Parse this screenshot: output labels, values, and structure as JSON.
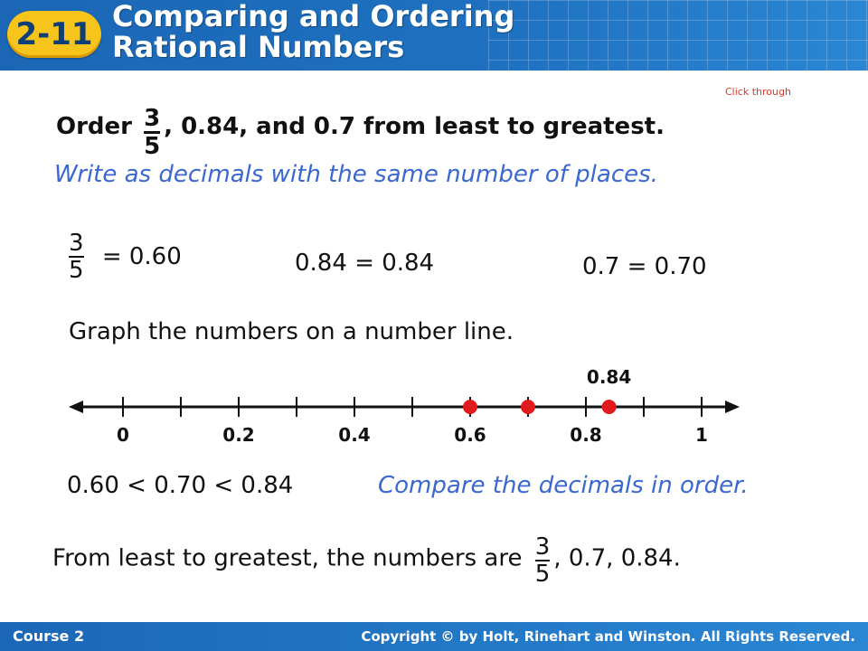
{
  "header": {
    "lesson_number": "2-11",
    "title_line1": "Comparing and Ordering",
    "title_line2": "Rational Numbers"
  },
  "click_through": "Click through",
  "problem": {
    "prefix": "Order",
    "fraction": {
      "numerator": "3",
      "denominator": "5"
    },
    "suffix": ", 0.84, and 0.7 from least to greatest."
  },
  "step1_instruction": "Write as decimals with the same number of places.",
  "conversions": {
    "fraction": {
      "numerator": "3",
      "denominator": "5"
    },
    "fraction_eq": "= 0.60",
    "second": "0.84 = 0.84",
    "third": "0.7 = 0.70"
  },
  "graph_instruction": "Graph the numbers on a number line.",
  "number_line": {
    "min": 0,
    "max": 1,
    "tick_step": 0.1,
    "labels": [
      {
        "value": 0,
        "text": "0"
      },
      {
        "value": 0.2,
        "text": "0.2"
      },
      {
        "value": 0.4,
        "text": "0.4"
      },
      {
        "value": 0.6,
        "text": "0.6"
      },
      {
        "value": 0.8,
        "text": "0.8"
      },
      {
        "value": 1,
        "text": "1"
      }
    ],
    "points": [
      0.6,
      0.7,
      0.84
    ],
    "point_label": "0.84",
    "point_color": "#e11b1b"
  },
  "inequality": "0.60 < 0.70 < 0.84",
  "compare_instruction": "Compare the decimals in order.",
  "final": {
    "prefix": "From least to greatest, the numbers are",
    "fraction": {
      "numerator": "3",
      "denominator": "5"
    },
    "suffix": ", 0.7, 0.84."
  },
  "footer": {
    "course": "Course 2",
    "copyright": "Copyright © by Holt, Rinehart and Winston. All Rights Reserved."
  },
  "colors": {
    "header_blue": "#1e70bf",
    "badge_yellow": "#f6c41a",
    "instruction_blue": "#3a67d1",
    "point_red": "#e11b1b"
  }
}
